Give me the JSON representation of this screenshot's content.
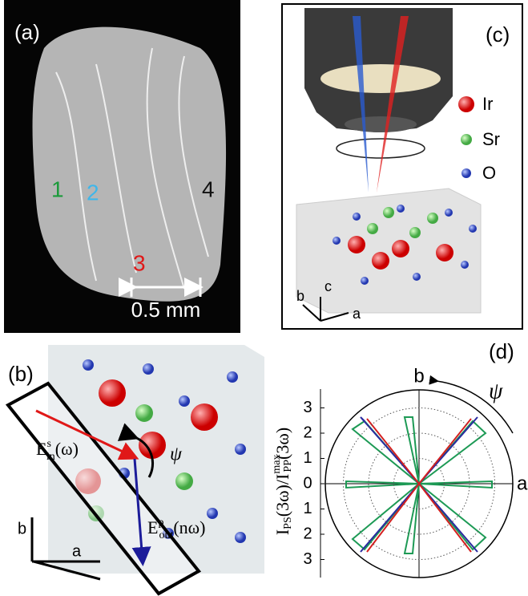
{
  "panel_a": {
    "label": "(a)",
    "regions": [
      "1",
      "2",
      "3",
      "4"
    ],
    "scale_bar": "0.5 mm"
  },
  "panel_b": {
    "label": "(b)",
    "e_in": {
      "symbol": "E",
      "sup": "s",
      "sub": "in",
      "arg": "(ω)"
    },
    "e_out": {
      "symbol": "E",
      "sup": "p",
      "sub": "out",
      "arg": "(nω)"
    },
    "angle": "ψ",
    "axis_b": "b",
    "axis_a": "a"
  },
  "panel_c": {
    "label": "(c)",
    "legend": [
      "Ir",
      "Sr",
      "O"
    ],
    "axes": [
      "b",
      "c",
      "a"
    ]
  },
  "panel_d": {
    "label": "(d)",
    "axis_top": "b",
    "axis_right": "a",
    "angle": "ψ",
    "ylabel": {
      "main": "I",
      "sub1": "PS",
      "mid": "(3ω)/I",
      "sub2": "PP",
      "sup2": "max",
      "end": "(3ω)"
    },
    "yticks": [
      {
        "value": 3,
        "label": "3"
      },
      {
        "value": 2,
        "label": "2"
      },
      {
        "value": 1,
        "label": "1"
      },
      0,
      {
        "value": -1,
        "label": "1"
      },
      {
        "value": -2,
        "label": "2"
      },
      {
        "value": -3,
        "label": "3"
      }
    ]
  }
}
